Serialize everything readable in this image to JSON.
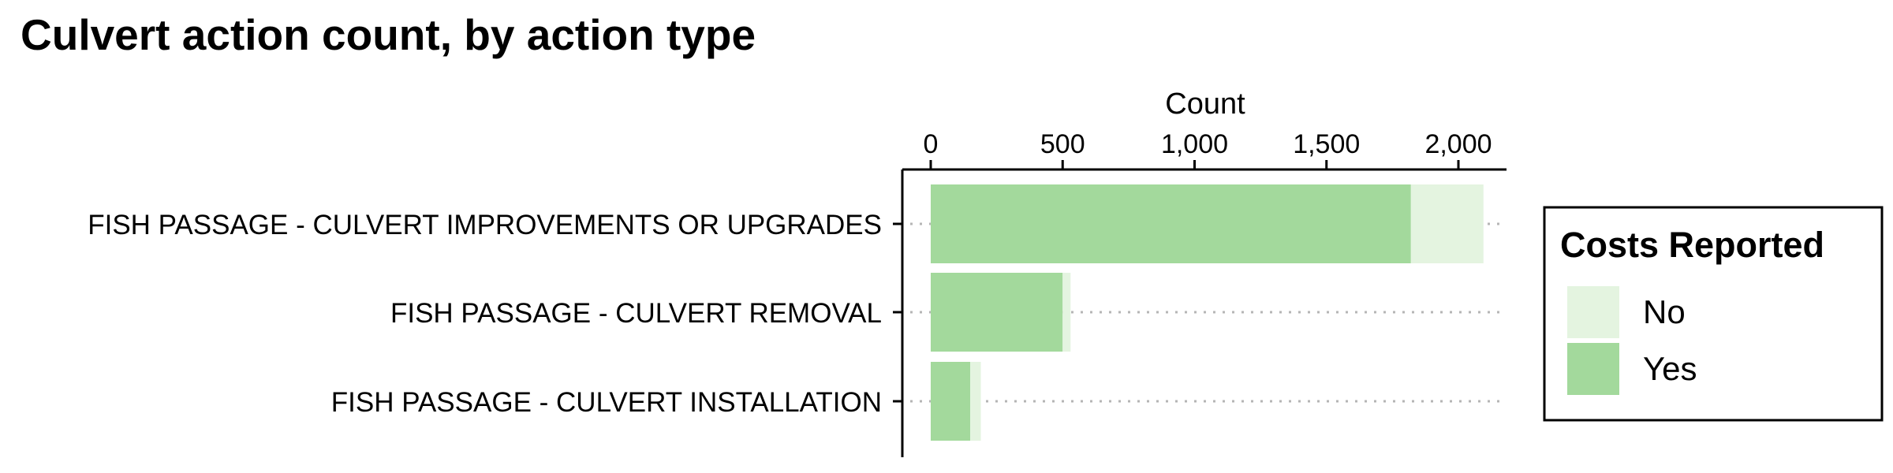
{
  "chart_data": {
    "type": "bar",
    "orientation": "horizontal",
    "stacked": true,
    "title": "Culvert action count, by action type",
    "xlabel": "Count",
    "x_axis_position": "top",
    "xlim": [
      0,
      2200
    ],
    "x_ticks": [
      0,
      500,
      1000,
      1500,
      2000
    ],
    "x_tick_labels": [
      "0",
      "500",
      "1,000",
      "1,500",
      "2,000"
    ],
    "categories": [
      "FISH PASSAGE - CULVERT IMPROVEMENTS OR UPGRADES",
      "FISH PASSAGE - CULVERT REMOVAL",
      "FISH PASSAGE - CULVERT INSTALLATION"
    ],
    "series": [
      {
        "name": "Yes",
        "values": [
          1820,
          500,
          150
        ],
        "color": "#a3d99c"
      },
      {
        "name": "No",
        "values": [
          275,
          30,
          40
        ],
        "color": "#e4f4e0"
      }
    ],
    "legend": {
      "title": "Costs Reported",
      "entries": [
        "No",
        "Yes"
      ],
      "placement": "right"
    },
    "grid": "dotted horizontal guide lines per category"
  }
}
